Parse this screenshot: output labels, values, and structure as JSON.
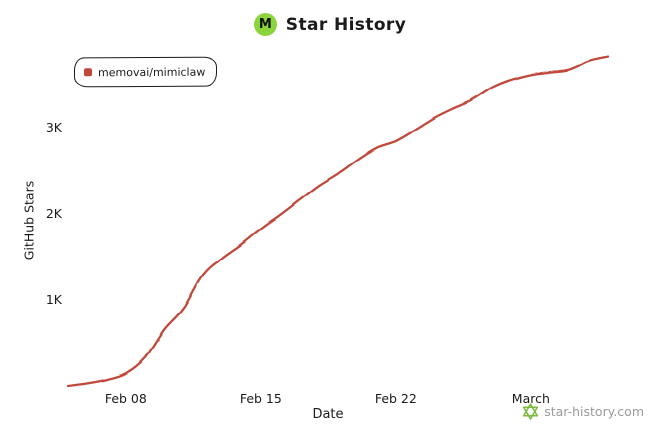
{
  "header": {
    "logo_letter": "M"
  },
  "watermark": {
    "text": "star-history.com"
  },
  "colors": {
    "logo_green": "#8cd43c",
    "watermark_green": "#7cbb3f",
    "muted_gray": "#9a9a9a",
    "axis_black": "#1b1b1b"
  },
  "chart_data": {
    "type": "line",
    "title": "Star History",
    "xlabel": "Date",
    "ylabel": "GitHub Stars",
    "legend_position": "top-left",
    "grid": false,
    "x_ticks": [
      "Feb 08",
      "Feb 15",
      "Feb 22",
      "March"
    ],
    "y_ticks": [
      "1K",
      "2K",
      "3K"
    ],
    "xlim": [
      "Feb 05",
      "Mar 05"
    ],
    "ylim": [
      0,
      3900
    ],
    "series": [
      {
        "name": "memovai/mimiclaw",
        "color": "#c0483b",
        "points": [
          {
            "date": "Feb 05",
            "stars": 0
          },
          {
            "date": "Feb 06",
            "stars": 30
          },
          {
            "date": "Feb 07",
            "stars": 75
          },
          {
            "date": "Feb 08",
            "stars": 150
          },
          {
            "date": "Feb 09",
            "stars": 330
          },
          {
            "date": "Feb 10",
            "stars": 660
          },
          {
            "date": "Feb 11",
            "stars": 910
          },
          {
            "date": "Feb 12",
            "stars": 1290
          },
          {
            "date": "Feb 13",
            "stars": 1490
          },
          {
            "date": "Feb 14",
            "stars": 1650
          },
          {
            "date": "Feb 15",
            "stars": 1830
          },
          {
            "date": "Feb 16",
            "stars": 1990
          },
          {
            "date": "Feb 17",
            "stars": 2160
          },
          {
            "date": "Feb 18",
            "stars": 2330
          },
          {
            "date": "Feb 19",
            "stars": 2470
          },
          {
            "date": "Feb 20",
            "stars": 2630
          },
          {
            "date": "Feb 21",
            "stars": 2770
          },
          {
            "date": "Feb 22",
            "stars": 2850
          },
          {
            "date": "Feb 23",
            "stars": 2980
          },
          {
            "date": "Feb 24",
            "stars": 3120
          },
          {
            "date": "Feb 25",
            "stars": 3230
          },
          {
            "date": "Feb 26",
            "stars": 3330
          },
          {
            "date": "Feb 27",
            "stars": 3470
          },
          {
            "date": "Feb 28",
            "stars": 3560
          },
          {
            "date": "Mar 01",
            "stars": 3620
          },
          {
            "date": "Mar 02",
            "stars": 3650
          },
          {
            "date": "Mar 03",
            "stars": 3680
          },
          {
            "date": "Mar 04",
            "stars": 3780
          },
          {
            "date": "Mar 05",
            "stars": 3830
          }
        ]
      }
    ]
  }
}
